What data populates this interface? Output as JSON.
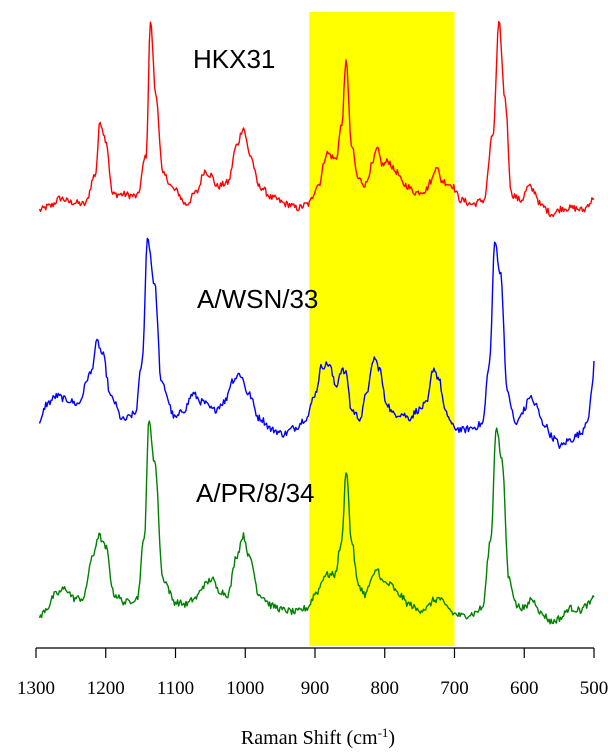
{
  "chart_data": {
    "type": "line",
    "title": "",
    "xlabel_main": "Raman Shift (cm",
    "xlabel_sup": "-1",
    "xlabel_close": ")",
    "x_reversed": true,
    "xlim": [
      1300,
      500
    ],
    "x_ticks": [
      1300,
      1200,
      1100,
      1000,
      900,
      800,
      700,
      600,
      500
    ],
    "y_axis_shown": false,
    "highlight_band": {
      "x_from": 908,
      "x_to": 700,
      "color": "#ffff00"
    },
    "series": [
      {
        "name": "HKX31",
        "color": "#ff0000",
        "keypoints": [
          [
            1295,
            0.02
          ],
          [
            1280,
            0.04
          ],
          [
            1265,
            0.08
          ],
          [
            1250,
            0.06
          ],
          [
            1230,
            0.05
          ],
          [
            1215,
            0.2
          ],
          [
            1208,
            0.47
          ],
          [
            1200,
            0.38
          ],
          [
            1190,
            0.1
          ],
          [
            1175,
            0.1
          ],
          [
            1155,
            0.09
          ],
          [
            1142,
            0.3
          ],
          [
            1136,
            0.98
          ],
          [
            1128,
            0.6
          ],
          [
            1118,
            0.2
          ],
          [
            1100,
            0.12
          ],
          [
            1085,
            0.05
          ],
          [
            1070,
            0.11
          ],
          [
            1058,
            0.22
          ],
          [
            1050,
            0.2
          ],
          [
            1040,
            0.14
          ],
          [
            1025,
            0.16
          ],
          [
            1012,
            0.35
          ],
          [
            1003,
            0.44
          ],
          [
            993,
            0.3
          ],
          [
            980,
            0.14
          ],
          [
            960,
            0.08
          ],
          [
            940,
            0.05
          ],
          [
            925,
            0.03
          ],
          [
            910,
            0.05
          ],
          [
            895,
            0.15
          ],
          [
            883,
            0.31
          ],
          [
            870,
            0.28
          ],
          [
            862,
            0.45
          ],
          [
            855,
            0.78
          ],
          [
            848,
            0.35
          ],
          [
            838,
            0.18
          ],
          [
            828,
            0.15
          ],
          [
            818,
            0.25
          ],
          [
            811,
            0.33
          ],
          [
            803,
            0.25
          ],
          [
            795,
            0.27
          ],
          [
            785,
            0.22
          ],
          [
            772,
            0.15
          ],
          [
            755,
            0.11
          ],
          [
            742,
            0.12
          ],
          [
            733,
            0.17
          ],
          [
            726,
            0.25
          ],
          [
            719,
            0.17
          ],
          [
            705,
            0.15
          ],
          [
            690,
            0.07
          ],
          [
            675,
            0.05
          ],
          [
            658,
            0.07
          ],
          [
            645,
            0.4
          ],
          [
            636,
            0.97
          ],
          [
            628,
            0.6
          ],
          [
            618,
            0.1
          ],
          [
            605,
            0.07
          ],
          [
            593,
            0.14
          ],
          [
            587,
            0.12
          ],
          [
            575,
            0.04
          ],
          [
            560,
            0.0
          ],
          [
            545,
            0.03
          ],
          [
            530,
            0.03
          ],
          [
            515,
            0.02
          ],
          [
            505,
            0.06
          ],
          [
            500,
            0.09
          ]
        ]
      },
      {
        "name": "A/WSN/33",
        "color": "#0000ff",
        "keypoints": [
          [
            1295,
            0.05
          ],
          [
            1285,
            0.15
          ],
          [
            1270,
            0.19
          ],
          [
            1255,
            0.17
          ],
          [
            1240,
            0.15
          ],
          [
            1222,
            0.3
          ],
          [
            1212,
            0.46
          ],
          [
            1205,
            0.4
          ],
          [
            1192,
            0.18
          ],
          [
            1175,
            0.07
          ],
          [
            1158,
            0.1
          ],
          [
            1148,
            0.35
          ],
          [
            1140,
            0.98
          ],
          [
            1130,
            0.75
          ],
          [
            1120,
            0.25
          ],
          [
            1100,
            0.08
          ],
          [
            1088,
            0.12
          ],
          [
            1075,
            0.2
          ],
          [
            1062,
            0.16
          ],
          [
            1045,
            0.12
          ],
          [
            1030,
            0.16
          ],
          [
            1018,
            0.27
          ],
          [
            1008,
            0.3
          ],
          [
            995,
            0.2
          ],
          [
            980,
            0.08
          ],
          [
            960,
            0.02
          ],
          [
            945,
            0.0
          ],
          [
            930,
            0.03
          ],
          [
            912,
            0.08
          ],
          [
            900,
            0.2
          ],
          [
            890,
            0.34
          ],
          [
            880,
            0.35
          ],
          [
            870,
            0.24
          ],
          [
            862,
            0.32
          ],
          [
            855,
            0.3
          ],
          [
            848,
            0.12
          ],
          [
            835,
            0.08
          ],
          [
            825,
            0.22
          ],
          [
            815,
            0.38
          ],
          [
            808,
            0.33
          ],
          [
            798,
            0.16
          ],
          [
            788,
            0.1
          ],
          [
            775,
            0.1
          ],
          [
            765,
            0.08
          ],
          [
            752,
            0.12
          ],
          [
            740,
            0.15
          ],
          [
            730,
            0.33
          ],
          [
            723,
            0.28
          ],
          [
            712,
            0.1
          ],
          [
            700,
            0.03
          ],
          [
            688,
            0.02
          ],
          [
            675,
            0.03
          ],
          [
            660,
            0.05
          ],
          [
            650,
            0.35
          ],
          [
            642,
            0.96
          ],
          [
            634,
            0.8
          ],
          [
            624,
            0.2
          ],
          [
            612,
            0.05
          ],
          [
            600,
            0.12
          ],
          [
            592,
            0.19
          ],
          [
            585,
            0.15
          ],
          [
            572,
            0.05
          ],
          [
            558,
            -0.02
          ],
          [
            548,
            -0.06
          ],
          [
            535,
            -0.03
          ],
          [
            520,
            0.0
          ],
          [
            508,
            0.08
          ],
          [
            502,
            0.25
          ],
          [
            500,
            0.38
          ]
        ]
      },
      {
        "name": "A/PR/8/34",
        "color": "#008000",
        "keypoints": [
          [
            1295,
            0.0
          ],
          [
            1285,
            0.05
          ],
          [
            1272,
            0.12
          ],
          [
            1258,
            0.15
          ],
          [
            1245,
            0.1
          ],
          [
            1232,
            0.1
          ],
          [
            1220,
            0.3
          ],
          [
            1210,
            0.42
          ],
          [
            1200,
            0.36
          ],
          [
            1188,
            0.12
          ],
          [
            1172,
            0.08
          ],
          [
            1155,
            0.1
          ],
          [
            1145,
            0.4
          ],
          [
            1138,
            1.0
          ],
          [
            1130,
            0.8
          ],
          [
            1118,
            0.2
          ],
          [
            1100,
            0.08
          ],
          [
            1085,
            0.07
          ],
          [
            1072,
            0.1
          ],
          [
            1058,
            0.17
          ],
          [
            1048,
            0.2
          ],
          [
            1038,
            0.14
          ],
          [
            1025,
            0.12
          ],
          [
            1012,
            0.32
          ],
          [
            1003,
            0.42
          ],
          [
            993,
            0.3
          ],
          [
            980,
            0.12
          ],
          [
            960,
            0.06
          ],
          [
            945,
            0.04
          ],
          [
            928,
            0.03
          ],
          [
            912,
            0.05
          ],
          [
            898,
            0.13
          ],
          [
            885,
            0.22
          ],
          [
            872,
            0.22
          ],
          [
            862,
            0.38
          ],
          [
            855,
            0.76
          ],
          [
            848,
            0.4
          ],
          [
            838,
            0.17
          ],
          [
            828,
            0.12
          ],
          [
            818,
            0.2
          ],
          [
            811,
            0.25
          ],
          [
            802,
            0.18
          ],
          [
            792,
            0.17
          ],
          [
            780,
            0.12
          ],
          [
            765,
            0.07
          ],
          [
            752,
            0.04
          ],
          [
            740,
            0.05
          ],
          [
            730,
            0.09
          ],
          [
            722,
            0.1
          ],
          [
            712,
            0.06
          ],
          [
            700,
            0.02
          ],
          [
            688,
            0.01
          ],
          [
            675,
            0.02
          ],
          [
            660,
            0.05
          ],
          [
            648,
            0.4
          ],
          [
            640,
            0.98
          ],
          [
            632,
            0.8
          ],
          [
            622,
            0.2
          ],
          [
            610,
            0.06
          ],
          [
            598,
            0.05
          ],
          [
            590,
            0.1
          ],
          [
            585,
            0.08
          ],
          [
            575,
            0.02
          ],
          [
            560,
            -0.02
          ],
          [
            548,
            0.0
          ],
          [
            535,
            0.05
          ],
          [
            520,
            0.04
          ],
          [
            508,
            0.07
          ],
          [
            500,
            0.1
          ]
        ]
      }
    ]
  }
}
